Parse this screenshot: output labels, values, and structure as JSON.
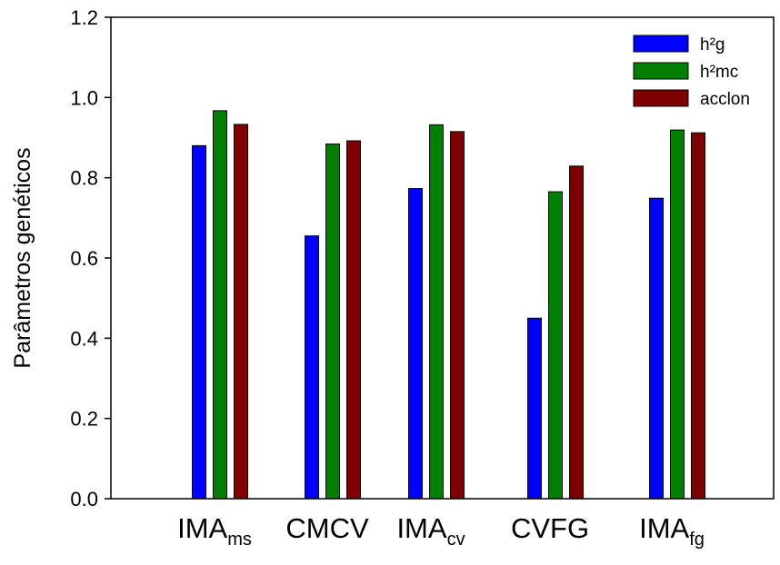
{
  "chart_data": {
    "type": "bar",
    "ylabel": "Parâmetros genéticos",
    "xlabel": "",
    "ylim": [
      0,
      1.2
    ],
    "yticks": [
      "0.0",
      "0.2",
      "0.4",
      "0.6",
      "0.8",
      "1.0",
      "1.2"
    ],
    "categories": [
      {
        "main": "IMA",
        "sub": "ms"
      },
      {
        "main": "CMCV",
        "sub": ""
      },
      {
        "main": "IMA",
        "sub": "cv"
      },
      {
        "main": "CVFG",
        "sub": ""
      },
      {
        "main": "IMA",
        "sub": "fg"
      }
    ],
    "series": [
      {
        "name": "h²g",
        "color": "#0000ff",
        "values": [
          0.88,
          0.655,
          0.773,
          0.45,
          0.749
        ]
      },
      {
        "name": "h²mc",
        "color": "#007f00",
        "values": [
          0.967,
          0.884,
          0.932,
          0.765,
          0.919
        ]
      },
      {
        "name": "acclon",
        "color": "#7f0000",
        "values": [
          0.933,
          0.892,
          0.915,
          0.829,
          0.912
        ]
      }
    ],
    "legend_position": "top-right",
    "grid": false
  }
}
